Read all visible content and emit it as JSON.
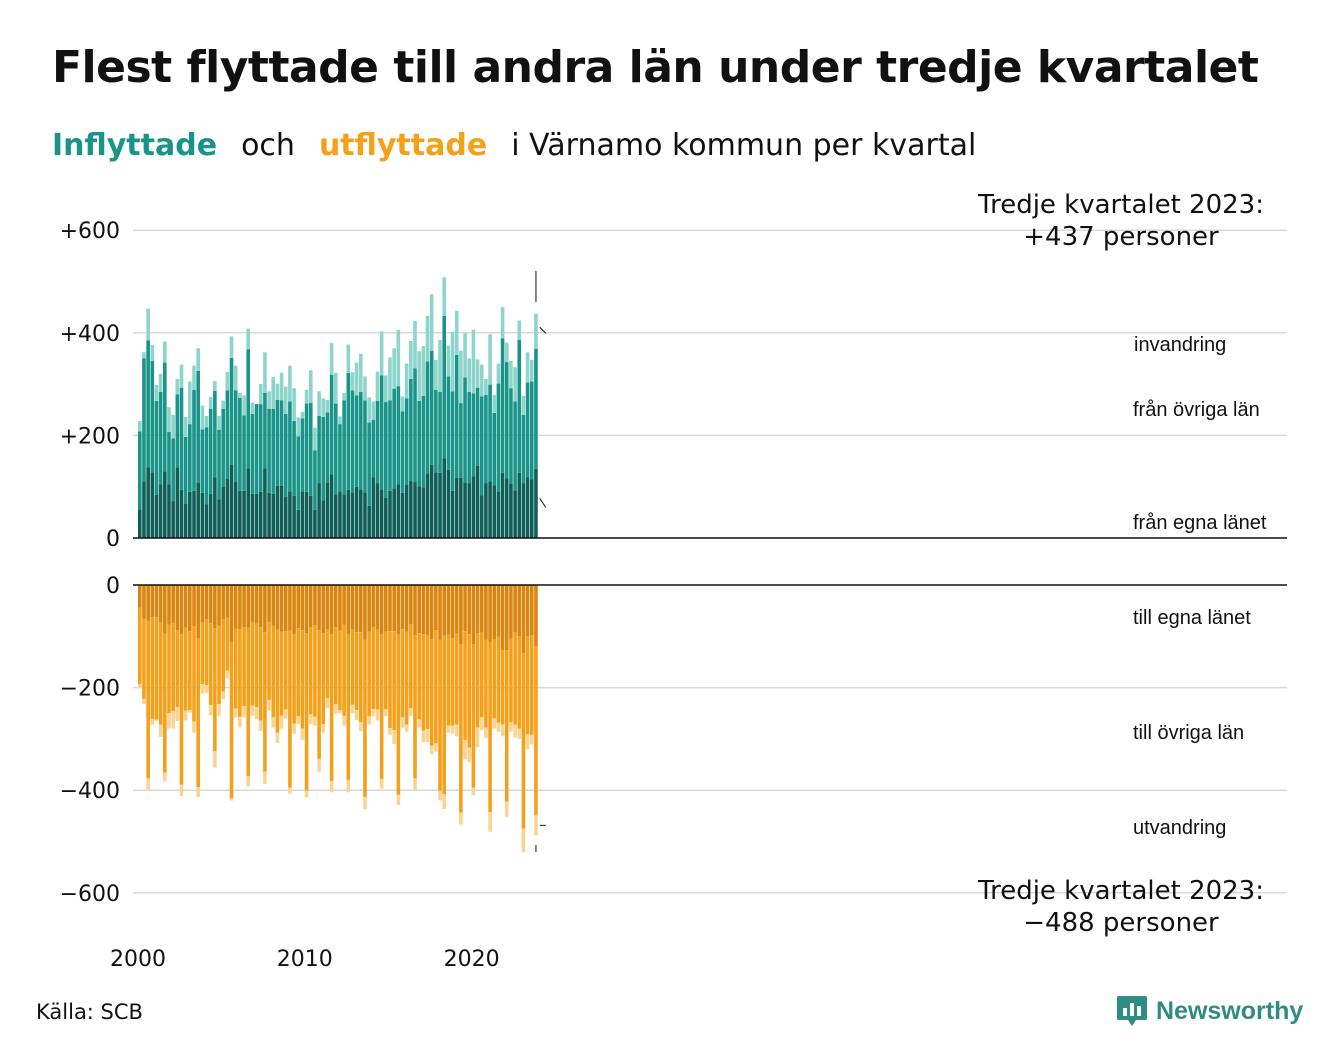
{
  "title": "Flest flyttade till andra län under tredje kvartalet",
  "subtitle": {
    "in_word": "Inflyttade",
    "och": "och",
    "out_word": "utflyttade",
    "rest": "i Värnamo kommun per kvartal"
  },
  "source": "Källa: SCB",
  "logo": {
    "text": "Newsworthy",
    "icon": "bar-chart-bubble-icon"
  },
  "colors": {
    "in_own": "#0f5e58",
    "in_other": "#1a9488",
    "in_immig": "#8dd4cc",
    "out_own": "#d9850f",
    "out_other": "#f5a01a",
    "out_emig": "#fbd492",
    "grid": "#d9d9d9",
    "title_in": "#1a9488",
    "title_out": "#f5a01a"
  },
  "chart_data": {
    "type": "bar",
    "stacked": true,
    "period": "quarterly",
    "first_quarter": "2000 Q1",
    "last_quarter": "2023 Q3",
    "x_tick_labels": [
      "2000",
      "2010",
      "2020"
    ],
    "top_panel": {
      "y_ticks": [
        0,
        200,
        400,
        600
      ],
      "y_tick_labels": [
        "0",
        "+200",
        "+400",
        "+600"
      ],
      "ylim": [
        0,
        600
      ]
    },
    "bottom_panel": {
      "y_ticks": [
        0,
        -200,
        -400,
        -600
      ],
      "y_tick_labels": [
        "0",
        "−200",
        "−400",
        "−600"
      ],
      "ylim": [
        -600,
        0
      ]
    },
    "series_labels": {
      "invandring": "invandring",
      "fran_ovriga": "från övriga län",
      "fran_egna": "från egna länet",
      "till_egna": "till egna länet",
      "till_ovriga": "till övriga län",
      "utvandring": "utvandring"
    },
    "annotations": {
      "top_line1": "Tredje kvartalet 2023:",
      "top_line2": "+437 personer",
      "bottom_line1": "Tredje kvartalet 2023:",
      "bottom_line2": "−488 personer"
    },
    "inflyttade_total": [
      228,
      362,
      447,
      376,
      298,
      320,
      383,
      255,
      240,
      310,
      338,
      236,
      305,
      336,
      370,
      258,
      238,
      275,
      306,
      238,
      268,
      324,
      393,
      336,
      283,
      278,
      408,
      264,
      256,
      300,
      362,
      286,
      314,
      301,
      322,
      295,
      336,
      292,
      235,
      246,
      289,
      327,
      215,
      286,
      272,
      269,
      380,
      322,
      237,
      283,
      377,
      323,
      342,
      359,
      315,
      274,
      266,
      324,
      403,
      317,
      352,
      370,
      406,
      276,
      340,
      384,
      423,
      364,
      374,
      433,
      475,
      347,
      386,
      508,
      375,
      402,
      443,
      365,
      399,
      350,
      406,
      348,
      338,
      310,
      397,
      279,
      340,
      450,
      381,
      345,
      333,
      424,
      277,
      362,
      347,
      437
    ],
    "inflyttade_fran_egna_lanet": [
      56,
      110,
      138,
      128,
      84,
      105,
      130,
      105,
      72,
      138,
      94,
      67,
      90,
      92,
      108,
      88,
      66,
      86,
      118,
      75,
      100,
      115,
      143,
      110,
      92,
      92,
      136,
      86,
      86,
      90,
      136,
      88,
      86,
      102,
      102,
      80,
      91,
      82,
      55,
      91,
      90,
      82,
      55,
      107,
      73,
      108,
      124,
      85,
      91,
      85,
      94,
      89,
      100,
      95,
      89,
      63,
      118,
      107,
      95,
      78,
      92,
      97,
      105,
      88,
      104,
      111,
      109,
      101,
      99,
      126,
      143,
      128,
      127,
      155,
      133,
      92,
      117,
      117,
      108,
      107,
      120,
      141,
      83,
      107,
      110,
      103,
      91,
      127,
      116,
      106,
      93,
      127,
      107,
      118,
      114,
      135
    ],
    "inflyttade_fran_ovriga_lan": [
      152,
      240,
      247,
      217,
      183,
      180,
      212,
      102,
      122,
      142,
      199,
      130,
      132,
      197,
      218,
      124,
      150,
      166,
      169,
      136,
      152,
      173,
      208,
      178,
      181,
      147,
      232,
      156,
      175,
      171,
      147,
      164,
      166,
      167,
      166,
      162,
      175,
      146,
      143,
      142,
      172,
      181,
      116,
      131,
      163,
      137,
      194,
      177,
      131,
      183,
      228,
      199,
      178,
      190,
      179,
      162,
      112,
      160,
      222,
      187,
      176,
      194,
      191,
      159,
      168,
      199,
      222,
      166,
      178,
      218,
      222,
      161,
      158,
      278,
      182,
      194,
      240,
      146,
      205,
      178,
      162,
      152,
      193,
      172,
      189,
      141,
      210,
      262,
      227,
      186,
      173,
      259,
      133,
      185,
      191,
      234
    ],
    "inflyttade_invandring": [
      20,
      12,
      62,
      31,
      31,
      35,
      41,
      48,
      46,
      30,
      45,
      39,
      83,
      47,
      44,
      46,
      22,
      23,
      19,
      27,
      16,
      36,
      42,
      48,
      10,
      39,
      40,
      22,
      -5,
      39,
      79,
      34,
      62,
      32,
      54,
      53,
      70,
      64,
      37,
      13,
      27,
      64,
      44,
      48,
      36,
      24,
      62,
      60,
      15,
      15,
      55,
      35,
      64,
      74,
      47,
      49,
      36,
      57,
      86,
      52,
      84,
      79,
      110,
      29,
      68,
      74,
      92,
      97,
      97,
      89,
      110,
      58,
      101,
      75,
      60,
      116,
      86,
      102,
      86,
      65,
      124,
      55,
      62,
      31,
      98,
      35,
      39,
      61,
      38,
      53,
      67,
      38,
      37,
      59,
      42,
      68
    ],
    "utflyttade_total": [
      -201,
      -232,
      -398,
      -273,
      -265,
      -296,
      -383,
      -280,
      -280,
      -265,
      -412,
      -264,
      -249,
      -288,
      -413,
      -212,
      -211,
      -254,
      -356,
      -255,
      -223,
      -182,
      -420,
      -258,
      -278,
      -258,
      -393,
      -255,
      -262,
      -285,
      -388,
      -245,
      -278,
      -308,
      -280,
      -260,
      -407,
      -290,
      -271,
      -302,
      -414,
      -271,
      -274,
      -364,
      -288,
      -240,
      -404,
      -251,
      -250,
      -274,
      -404,
      -250,
      -263,
      -285,
      -437,
      -272,
      -256,
      -264,
      -397,
      -256,
      -292,
      -310,
      -429,
      -278,
      -286,
      -255,
      -399,
      -278,
      -306,
      -306,
      -330,
      -325,
      -420,
      -437,
      -288,
      -290,
      -295,
      -467,
      -340,
      -345,
      -410,
      -316,
      -283,
      -299,
      -481,
      -280,
      -286,
      -295,
      -452,
      -286,
      -297,
      -300,
      -521,
      -320,
      -311,
      -488
    ],
    "utflyttade_till_egna_lanet": [
      -44,
      -66,
      -70,
      -63,
      -63,
      -72,
      -95,
      -77,
      -74,
      -88,
      -96,
      -83,
      -90,
      -80,
      -104,
      -73,
      -67,
      -74,
      -84,
      -79,
      -67,
      -64,
      -111,
      -85,
      -86,
      -82,
      -83,
      -72,
      -75,
      -82,
      -92,
      -72,
      -79,
      -87,
      -91,
      -90,
      -89,
      -96,
      -84,
      -88,
      -94,
      -82,
      -78,
      -88,
      -94,
      -87,
      -96,
      -82,
      -89,
      -77,
      -97,
      -87,
      -92,
      -92,
      -107,
      -91,
      -82,
      -87,
      -97,
      -91,
      -90,
      -90,
      -97,
      -86,
      -91,
      -76,
      -98,
      -94,
      -96,
      -98,
      -106,
      -88,
      -107,
      -99,
      -97,
      -104,
      -95,
      -115,
      -90,
      -96,
      -115,
      -94,
      -93,
      -107,
      -112,
      -106,
      -101,
      -127,
      -127,
      -105,
      -93,
      -100,
      -133,
      -100,
      -98,
      -119
    ],
    "utflyttade_till_ovriga_lan": [
      -149,
      -156,
      -307,
      -198,
      -199,
      -200,
      -271,
      -173,
      -172,
      -150,
      -293,
      -162,
      -154,
      -186,
      -290,
      -120,
      -128,
      -160,
      -240,
      -153,
      -141,
      -103,
      -305,
      -156,
      -171,
      -154,
      -290,
      -163,
      -163,
      -182,
      -272,
      -152,
      -179,
      -201,
      -164,
      -153,
      -306,
      -174,
      -172,
      -192,
      -307,
      -170,
      -179,
      -251,
      -177,
      -134,
      -286,
      -150,
      -155,
      -178,
      -283,
      -146,
      -152,
      -175,
      -306,
      -165,
      -160,
      -156,
      -281,
      -151,
      -189,
      -193,
      -312,
      -172,
      -181,
      -164,
      -279,
      -168,
      -188,
      -183,
      -207,
      -220,
      -294,
      -309,
      -177,
      -170,
      -177,
      -329,
      -212,
      -221,
      -280,
      -184,
      -165,
      -171,
      -331,
      -154,
      -167,
      -145,
      -295,
      -162,
      -179,
      -180,
      -342,
      -191,
      -194,
      -330
    ],
    "utflyttade_utvandring": [
      -8,
      -10,
      -21,
      -12,
      -3,
      -24,
      -17,
      -30,
      -34,
      -27,
      -23,
      -19,
      -5,
      -22,
      -19,
      -19,
      -16,
      -20,
      -32,
      -23,
      -15,
      -15,
      -4,
      -17,
      -21,
      -22,
      -20,
      -20,
      -24,
      -21,
      -24,
      -21,
      -20,
      -20,
      -25,
      -17,
      -12,
      -20,
      -15,
      -22,
      -13,
      -19,
      -17,
      -25,
      -17,
      -19,
      -22,
      -19,
      -6,
      -19,
      -24,
      -17,
      -19,
      -18,
      -24,
      -16,
      -14,
      -21,
      -19,
      -14,
      -13,
      -27,
      -20,
      -20,
      -14,
      -15,
      -22,
      -16,
      -22,
      -25,
      -17,
      -17,
      -19,
      -29,
      -14,
      -16,
      -23,
      -23,
      -38,
      -28,
      -15,
      -38,
      -25,
      -21,
      -38,
      -20,
      -18,
      -23,
      -30,
      -19,
      -25,
      -20,
      -46,
      -29,
      -19,
      -39
    ]
  }
}
